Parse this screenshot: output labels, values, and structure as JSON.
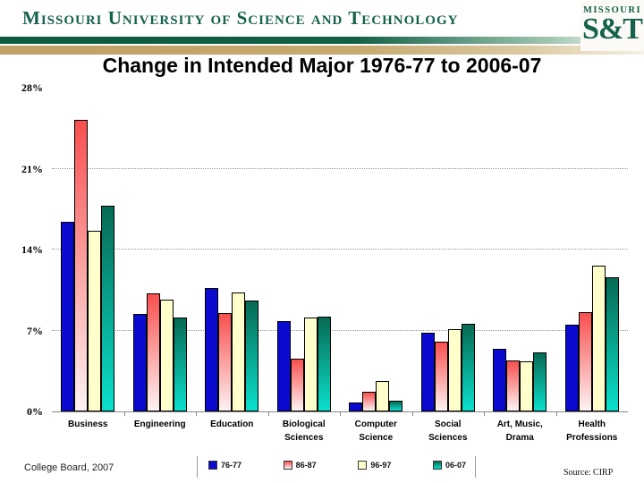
{
  "header": {
    "university_name": "Missouri University of Science and Technology",
    "logo_top": "MISSOURI",
    "logo_main": "S&T",
    "brand_green": "#15624c",
    "brand_tan": "#c0a065"
  },
  "title": "Change in Intended Major 1976-77 to 2006-07",
  "footer": {
    "credit_text": "College Board, 2007",
    "source_text": "Source: CIRP"
  },
  "chart_data": {
    "type": "bar",
    "title": "Change in Intended Major 1976-77 to 2006-07",
    "categories": [
      "Business",
      "Engineering",
      "Education",
      "Biological\nSciences",
      "Computer\nScience",
      "Social\nSciences",
      "Art, Music,\nDrama",
      "Health\nProfessions"
    ],
    "series": [
      {
        "name": "76-77",
        "fill_top": "#0b0bd0",
        "fill_bottom": "#0b0bd0",
        "values": [
          16.4,
          8.4,
          10.7,
          7.8,
          0.8,
          6.8,
          5.4,
          7.5
        ]
      },
      {
        "name": "86-87",
        "fill_top": "#f94f4f",
        "fill_bottom": "#fdf3f3",
        "values": [
          25.2,
          10.2,
          8.5,
          4.6,
          1.7,
          6.0,
          4.4,
          8.6
        ]
      },
      {
        "name": "96-97",
        "fill_top": "#ffffcc",
        "fill_bottom": "#ffffcc",
        "values": [
          15.6,
          9.7,
          10.3,
          8.1,
          2.6,
          7.1,
          4.3,
          12.6
        ]
      },
      {
        "name": "06-07",
        "fill_top": "#076a53",
        "fill_bottom": "#0ae0cc",
        "values": [
          17.8,
          8.1,
          9.6,
          8.2,
          0.9,
          7.6,
          5.1,
          11.6
        ]
      }
    ],
    "ylim": [
      0,
      28
    ],
    "yticks": [
      0,
      7,
      14,
      21,
      28
    ],
    "ytick_labels": [
      "0%",
      "7%",
      "14%",
      "21%",
      "28%"
    ],
    "xlabel": "",
    "ylabel": "",
    "grid": "horizontal dotted at 7%, 14%, 21%; solid baseline at 0%",
    "legend_position": "bottom"
  }
}
